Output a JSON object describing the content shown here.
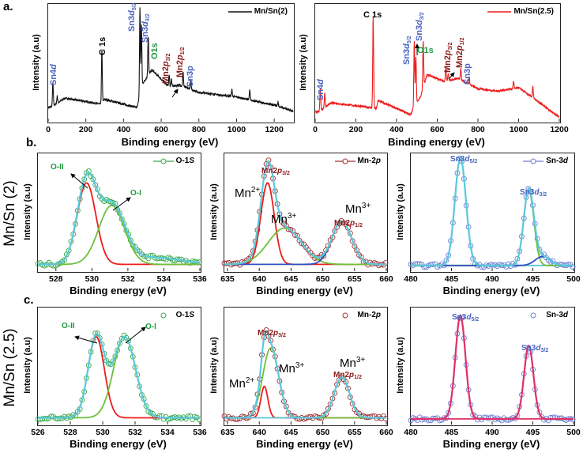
{
  "figure": {
    "panel_labels": [
      "a.",
      "b.",
      "c."
    ],
    "row_labels": [
      "Mn/Sn (2)",
      "Mn/Sn (2.5)"
    ]
  },
  "chart_data": [
    {
      "type": "line",
      "title": "",
      "xlabel": "Binding energy (eV)",
      "ylabel": "Intensity (a.u)",
      "xlim": [
        0,
        1300
      ],
      "ylim": [
        0,
        100
      ],
      "xticks": [
        0,
        200,
        400,
        600,
        800,
        1000,
        1200
      ],
      "legend": "Mn/Sn(2)",
      "legend_position": "top-right",
      "color": "#111111",
      "baseline": [
        [
          0,
          12
        ],
        [
          20,
          13
        ],
        [
          90,
          20
        ],
        [
          280,
          15
        ],
        [
          300,
          19
        ],
        [
          470,
          12
        ],
        [
          485,
          20
        ],
        [
          500,
          32
        ],
        [
          550,
          44
        ],
        [
          640,
          30
        ],
        [
          700,
          31
        ],
        [
          800,
          25
        ],
        [
          1000,
          21
        ],
        [
          1200,
          14
        ],
        [
          1300,
          9
        ]
      ],
      "peaks": [
        {
          "x": 25,
          "h": 20
        },
        {
          "x": 48,
          "h": 6
        },
        {
          "x": 285,
          "h": 45
        },
        {
          "x": 487,
          "h": 75
        },
        {
          "x": 495,
          "h": 55
        },
        {
          "x": 531,
          "h": 33
        },
        {
          "x": 642,
          "h": 10
        },
        {
          "x": 654,
          "h": 6
        },
        {
          "x": 716,
          "h": 12
        },
        {
          "x": 757,
          "h": 8
        },
        {
          "x": 975,
          "h": 6
        },
        {
          "x": 1070,
          "h": 8
        },
        {
          "x": 1220,
          "h": 4
        }
      ],
      "annotations": [
        {
          "main": "Sn4",
          "it": "d",
          "sub": ""
        },
        {
          "main": "C 1s",
          "it": "",
          "sub": ""
        },
        {
          "main": "Sn3",
          "it": "d",
          "sub": "5/2"
        },
        {
          "main": "Sn3",
          "it": "d",
          "sub": "3/2"
        },
        {
          "main": "O1s",
          "it": "",
          "sub": ""
        },
        {
          "main": "Mn2",
          "it": "p",
          "sub": "3/2"
        },
        {
          "main": "Mn2",
          "it": "p",
          "sub": "1/2"
        },
        {
          "main": "Sn3p",
          "it": "",
          "sub": ""
        }
      ]
    },
    {
      "type": "line",
      "title": "",
      "xlabel": "Binding energy (eV)",
      "ylabel": "Intensity (a.u)",
      "xlim": [
        0,
        1200
      ],
      "ylim": [
        0,
        100
      ],
      "xticks": [
        0,
        200,
        400,
        600,
        800,
        1000,
        1200
      ],
      "legend": "Mn/Sn(2.5)",
      "legend_position": "top-right",
      "color": "#ee1c1c",
      "baseline": [
        [
          0,
          8
        ],
        [
          20,
          9
        ],
        [
          80,
          16
        ],
        [
          280,
          12
        ],
        [
          300,
          11
        ],
        [
          310,
          18
        ],
        [
          470,
          6
        ],
        [
          490,
          14
        ],
        [
          520,
          22
        ],
        [
          550,
          40
        ],
        [
          640,
          34
        ],
        [
          700,
          37
        ],
        [
          800,
          28
        ],
        [
          900,
          26
        ],
        [
          1000,
          29
        ],
        [
          1200,
          4
        ]
      ],
      "peaks": [
        {
          "x": 25,
          "h": 18
        },
        {
          "x": 47,
          "h": 12
        },
        {
          "x": 285,
          "h": 78
        },
        {
          "x": 487,
          "h": 55
        },
        {
          "x": 495,
          "h": 40
        },
        {
          "x": 531,
          "h": 40
        },
        {
          "x": 642,
          "h": 12
        },
        {
          "x": 654,
          "h": 6
        },
        {
          "x": 716,
          "h": 10
        },
        {
          "x": 757,
          "h": 6
        },
        {
          "x": 975,
          "h": 6
        },
        {
          "x": 1070,
          "h": 10
        }
      ],
      "annotations": [
        {
          "main": "Sn4",
          "it": "d",
          "sub": ""
        },
        {
          "main": "C 1s",
          "it": "",
          "sub": ""
        },
        {
          "main": "Sn3",
          "it": "d",
          "sub": "5/2"
        },
        {
          "main": "Sn3",
          "it": "d",
          "sub": "3/2"
        },
        {
          "main": "O1s",
          "it": "",
          "sub": ""
        },
        {
          "main": "Mn2",
          "it": "p",
          "sub": "3/2"
        },
        {
          "main": "Mn2",
          "it": "p",
          "sub": "1/2"
        },
        {
          "main": "Sn3p",
          "it": "",
          "sub": ""
        }
      ]
    },
    {
      "type": "line",
      "xlabel": "Binding energy (eV)",
      "ylabel": "Intensity (a.u)",
      "xlim": [
        527,
        536
      ],
      "ylim": [
        -4,
        100
      ],
      "xticks": [
        528,
        530,
        532,
        534,
        536
      ],
      "legend": "O-1",
      "legend_it": "S",
      "legend_position": "top-right",
      "marker_color": "#3aa84a",
      "envelope_color": "#5bc8dc",
      "legend_line": true,
      "background": 2,
      "components": [
        {
          "center": 529.7,
          "amplitude": 72,
          "sigma": 0.52,
          "color": "#ee1c1c"
        },
        {
          "center": 531.1,
          "amplitude": 52,
          "sigma": 0.72,
          "color": "#6cc13a"
        },
        {
          "center": 533.5,
          "amplitude": 6,
          "sigma": 1.5,
          "color": "none"
        }
      ],
      "annotations": [
        "O-II",
        "O-I"
      ]
    },
    {
      "type": "line",
      "xlabel": "Binding energy (eV)",
      "ylabel": "Intensity (a.u)",
      "xlim": [
        634.5,
        660
      ],
      "ylim": [
        -4,
        100
      ],
      "xticks": [
        635,
        640,
        645,
        650,
        655,
        660
      ],
      "legend": "Mn-2",
      "legend_it": "p",
      "legend_position": "top-right",
      "marker_color": "#a03030",
      "envelope_color": "#5bc8dc",
      "legend_line": true,
      "background": 2,
      "components": [
        {
          "center": 641.3,
          "amplitude": 72,
          "sigma": 1.05,
          "color": "#ee1c1c"
        },
        {
          "center": 644,
          "amplitude": 32,
          "sigma": 2.6,
          "color": "#6cc13a"
        },
        {
          "center": 653,
          "amplitude": 38,
          "sigma": 1.55,
          "color": "#3050c0"
        }
      ],
      "annotations": [
        "Mn",
        "2+",
        "Mn2",
        "p",
        "3/2",
        "Mn",
        "3+",
        "Mn",
        "3+",
        "Mn2",
        "p",
        "1/2"
      ]
    },
    {
      "type": "line",
      "xlabel": "Binding energy (eV)",
      "ylabel": "Intensity (a.u)",
      "xlim": [
        480,
        500
      ],
      "ylim": [
        -4,
        100
      ],
      "xticks": [
        480,
        485,
        490,
        495,
        500
      ],
      "legend": "Sn-3",
      "legend_it": "d",
      "legend_position": "top-right",
      "marker_color": "#6a7fd0",
      "envelope_color": "#5bc8dc",
      "legend_line": true,
      "background": 1,
      "components": [
        {
          "center": 486.1,
          "amplitude": 95,
          "sigma": 0.68,
          "color": "#5bc8dc"
        },
        {
          "center": 494.5,
          "amplitude": 67,
          "sigma": 0.62,
          "color": "#6cc13a"
        },
        {
          "center": 496.2,
          "amplitude": 8,
          "sigma": 0.9,
          "color": "#3050c0"
        }
      ],
      "annotations": [
        "Sn3",
        "d",
        "5/2",
        "Sn3",
        "d",
        "3/2"
      ]
    },
    {
      "type": "line",
      "xlabel": "Binding energy (eV)",
      "ylabel": "Intensity (a.u)",
      "xlim": [
        526,
        536
      ],
      "ylim": [
        -4,
        100
      ],
      "xticks": [
        526,
        528,
        530,
        532,
        534,
        536
      ],
      "legend": "O-1",
      "legend_it": "S",
      "legend_position": "top-right",
      "marker_color": "#3aa84a",
      "envelope_color": "#5bc8dc",
      "legend_line": false,
      "background": 2,
      "components": [
        {
          "center": 529.6,
          "amplitude": 72,
          "sigma": 0.5,
          "color": "#ee1c1c"
        },
        {
          "center": 531.35,
          "amplitude": 72,
          "sigma": 0.68,
          "color": "#6cc13a"
        }
      ],
      "annotations": [
        "O-II",
        "O-I"
      ]
    },
    {
      "type": "line",
      "xlabel": "Binding energy (eV)",
      "ylabel": "Intensity (a.u)",
      "xlim": [
        634.5,
        660
      ],
      "ylim": [
        -4,
        100
      ],
      "xticks": [
        635,
        640,
        645,
        650,
        655,
        660
      ],
      "legend": "Mn-2",
      "legend_it": "p",
      "legend_position": "top-right",
      "marker_color": "#a03030",
      "envelope_color": "#5bc8dc",
      "legend_line": false,
      "background": 2,
      "components": [
        {
          "center": 640.8,
          "amplitude": 28,
          "sigma": 0.55,
          "color": "#ee1c1c"
        },
        {
          "center": 641.8,
          "amplitude": 62,
          "sigma": 1.25,
          "color": "#6cc13a"
        },
        {
          "center": 653,
          "amplitude": 36,
          "sigma": 1.2,
          "color": "#5bc8dc"
        }
      ],
      "annotations": [
        "Mn",
        "2+",
        "Mn2",
        "p",
        "3/2",
        "Mn",
        "3+",
        "Mn",
        "3+",
        "Mn2",
        "p",
        "1/2"
      ]
    },
    {
      "type": "line",
      "xlabel": "Binding energy (eV)",
      "ylabel": "Intensity (a.u)",
      "xlim": [
        480,
        500
      ],
      "ylim": [
        -4,
        100
      ],
      "xticks": [
        480,
        485,
        490,
        495,
        500
      ],
      "legend": "Sn-3",
      "legend_it": "d",
      "legend_position": "top-right",
      "marker_color": "#6a7fd0",
      "envelope_color": "#e0306a",
      "legend_line": false,
      "background": 1,
      "components": [
        {
          "center": 486.1,
          "amplitude": 92,
          "sigma": 0.62,
          "color": "#e0306a"
        },
        {
          "center": 494.5,
          "amplitude": 65,
          "sigma": 0.58,
          "color": "#e0306a"
        }
      ],
      "annotations": [
        "Sn3",
        "d",
        "5/2",
        "Sn3",
        "d",
        "3/2"
      ]
    }
  ]
}
